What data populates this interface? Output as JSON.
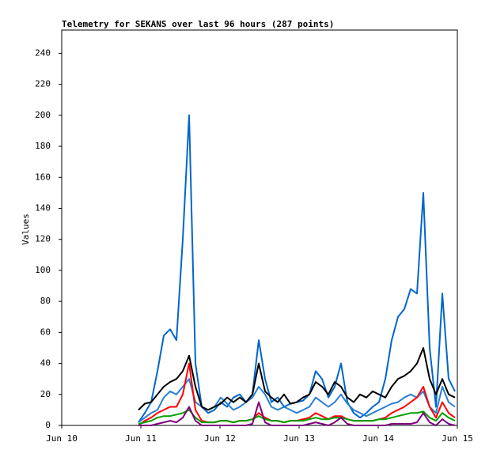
{
  "chart_data": {
    "type": "line",
    "title": "Telemetry for SEKANS over last 96 hours (287 points)",
    "y_label": "Values",
    "x": [
      0.97,
      1.05,
      1.13,
      1.21,
      1.29,
      1.37,
      1.45,
      1.53,
      1.61,
      1.69,
      1.77,
      1.85,
      1.93,
      2.01,
      2.09,
      2.17,
      2.25,
      2.33,
      2.41,
      2.49,
      2.57,
      2.65,
      2.73,
      2.81,
      2.89,
      2.97,
      3.05,
      3.13,
      3.21,
      3.29,
      3.37,
      3.45,
      3.53,
      3.61,
      3.69,
      3.77,
      3.85,
      3.93,
      4.01,
      4.09,
      4.17,
      4.25,
      4.33,
      4.41,
      4.49,
      4.57,
      4.65,
      4.73,
      4.81,
      4.89,
      4.97
    ],
    "series": [
      {
        "color": "#0066cc",
        "values": [
          2,
          8,
          15,
          35,
          58,
          62,
          55,
          120,
          200,
          40,
          12,
          8,
          10,
          15,
          12,
          18,
          20,
          15,
          20,
          55,
          30,
          15,
          18,
          12,
          14,
          15,
          16,
          20,
          35,
          30,
          18,
          25,
          40,
          15,
          8,
          5,
          8,
          12,
          15,
          30,
          55,
          70,
          75,
          88,
          85,
          150,
          50,
          12,
          85,
          30,
          22
        ]
      },
      {
        "color": "#2a7fd4",
        "values": [
          2,
          5,
          8,
          10,
          18,
          22,
          20,
          25,
          30,
          15,
          12,
          10,
          12,
          18,
          14,
          10,
          12,
          15,
          18,
          25,
          20,
          12,
          10,
          12,
          10,
          8,
          10,
          12,
          18,
          15,
          12,
          15,
          20,
          14,
          10,
          8,
          6,
          8,
          10,
          12,
          14,
          15,
          18,
          20,
          18,
          22,
          12,
          8,
          25,
          15,
          12
        ]
      },
      {
        "color": "#000000",
        "values": [
          10,
          14,
          15,
          20,
          25,
          28,
          30,
          35,
          45,
          25,
          12,
          10,
          12,
          14,
          18,
          15,
          18,
          15,
          20,
          40,
          22,
          18,
          15,
          20,
          14,
          15,
          18,
          20,
          28,
          25,
          20,
          28,
          25,
          18,
          15,
          20,
          18,
          22,
          20,
          18,
          25,
          30,
          32,
          35,
          40,
          50,
          30,
          20,
          30,
          20,
          18
        ]
      },
      {
        "color": "#ff0000",
        "values": [
          0,
          3,
          5,
          8,
          10,
          12,
          12,
          20,
          40,
          10,
          3,
          2,
          2,
          3,
          3,
          2,
          3,
          3,
          4,
          8,
          5,
          3,
          3,
          2,
          3,
          3,
          4,
          5,
          8,
          6,
          4,
          6,
          6,
          4,
          3,
          3,
          3,
          3,
          4,
          5,
          8,
          10,
          12,
          15,
          18,
          25,
          12,
          5,
          15,
          8,
          5
        ]
      },
      {
        "color": "#00a000",
        "values": [
          1,
          2,
          3,
          5,
          6,
          6,
          7,
          8,
          10,
          5,
          2,
          2,
          2,
          3,
          3,
          2,
          3,
          3,
          4,
          6,
          4,
          3,
          3,
          2,
          3,
          3,
          3,
          4,
          5,
          4,
          4,
          5,
          5,
          4,
          3,
          3,
          3,
          3,
          4,
          4,
          5,
          6,
          7,
          8,
          8,
          9,
          5,
          3,
          8,
          5,
          3
        ]
      },
      {
        "color": "#800080",
        "values": [
          0,
          0,
          0,
          1,
          2,
          3,
          2,
          5,
          12,
          3,
          0,
          0,
          0,
          0,
          0,
          0,
          0,
          0,
          1,
          15,
          2,
          0,
          0,
          0,
          0,
          0,
          0,
          1,
          2,
          1,
          0,
          2,
          5,
          1,
          0,
          0,
          0,
          0,
          0,
          0,
          1,
          1,
          1,
          1,
          2,
          8,
          2,
          0,
          4,
          1,
          0
        ]
      }
    ],
    "xlim": [
      0,
      5
    ],
    "xticks": [
      {
        "value": 0,
        "label": "Jun 10"
      },
      {
        "value": 1,
        "label": "Jun 11"
      },
      {
        "value": 2,
        "label": "Jun 12"
      },
      {
        "value": 3,
        "label": "Jun 13"
      },
      {
        "value": 4,
        "label": "Jun 14"
      },
      {
        "value": 5,
        "label": "Jun 15"
      }
    ],
    "ylim": [
      0,
      255
    ],
    "yticks": [
      0,
      20,
      40,
      60,
      80,
      100,
      120,
      140,
      160,
      180,
      200,
      220,
      240
    ],
    "grid": false
  }
}
